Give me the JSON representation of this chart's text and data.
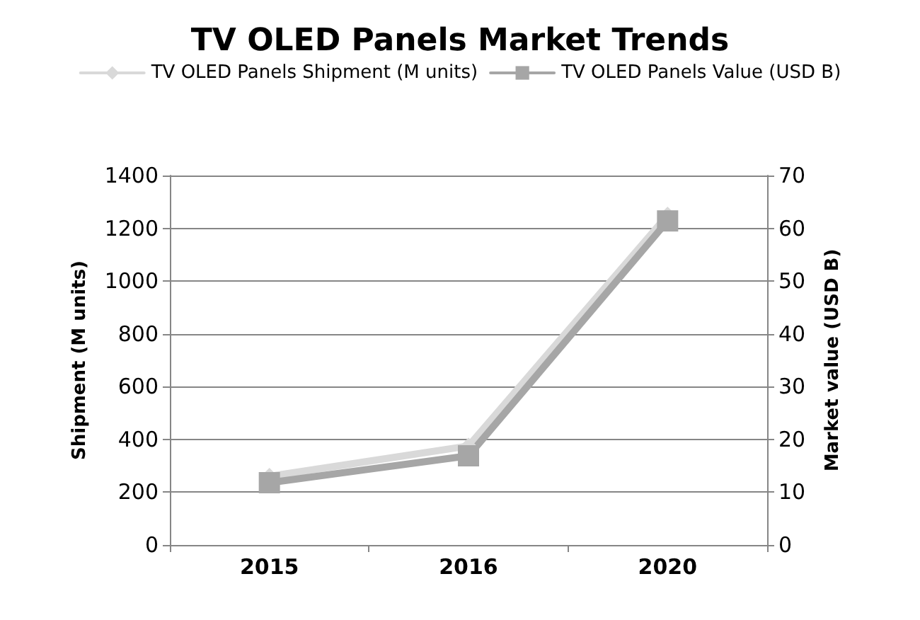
{
  "chart_data": {
    "type": "line",
    "title": "TV OLED Panels Market Trends",
    "categories": [
      "2015",
      "2016",
      "2020"
    ],
    "series": [
      {
        "name": "TV OLED Panels Shipment (M units)",
        "color": "#d9d9d9",
        "marker": "diamond",
        "values": [
          260,
          375,
          1250
        ]
      },
      {
        "name": "TV OLED Panels Value (USD B)",
        "color": "#a6a6a6",
        "marker": "square",
        "axis": "y2",
        "values": [
          11.8,
          16.9,
          61.4
        ]
      }
    ],
    "ylabel": "Shipment (M units)",
    "y2label": "Market value (USD B)",
    "ylim": [
      0,
      1400
    ],
    "yticks": [
      0,
      200,
      400,
      600,
      800,
      1000,
      1200,
      1400
    ],
    "y2lim": [
      0,
      70
    ],
    "y2ticks": [
      0,
      10,
      20,
      30,
      40,
      50,
      60,
      70
    ],
    "grid": "y",
    "legend": "top"
  }
}
